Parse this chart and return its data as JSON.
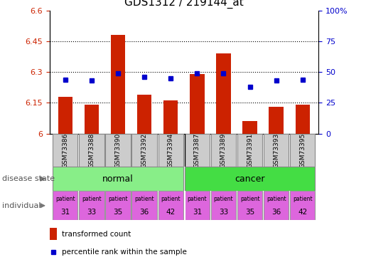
{
  "title": "GDS1312 / 219144_at",
  "samples": [
    "GSM73386",
    "GSM73388",
    "GSM73390",
    "GSM73392",
    "GSM73394",
    "GSM73387",
    "GSM73389",
    "GSM73391",
    "GSM73393",
    "GSM73395"
  ],
  "bar_values": [
    6.18,
    6.14,
    6.48,
    6.19,
    6.16,
    6.29,
    6.39,
    6.06,
    6.13,
    6.14
  ],
  "percentile_values": [
    44,
    43,
    49,
    46,
    45,
    49,
    49,
    38,
    43,
    44
  ],
  "ylim_left": [
    6.0,
    6.6
  ],
  "ylim_right": [
    0,
    100
  ],
  "yticks_left": [
    6.0,
    6.15,
    6.3,
    6.45,
    6.6
  ],
  "ytick_labels_left": [
    "6",
    "6.15",
    "6.3",
    "6.45",
    "6.6"
  ],
  "yticks_right": [
    0,
    25,
    50,
    75,
    100
  ],
  "ytick_labels_right": [
    "0",
    "25",
    "50",
    "75",
    "100%"
  ],
  "bar_color": "#cc2200",
  "dot_color": "#0000cc",
  "disease_label": "disease state",
  "individual_label": "individual",
  "normal_color": "#88ee88",
  "cancer_color": "#44dd44",
  "patient_color": "#dd66dd",
  "patient_numbers_normal": [
    31,
    33,
    35,
    36,
    42
  ],
  "patient_numbers_cancer": [
    31,
    33,
    35,
    36,
    42
  ],
  "legend_bar_label": "transformed count",
  "legend_dot_label": "percentile rank within the sample",
  "gsm_bg_color": "#cccccc",
  "bar_width": 0.55
}
